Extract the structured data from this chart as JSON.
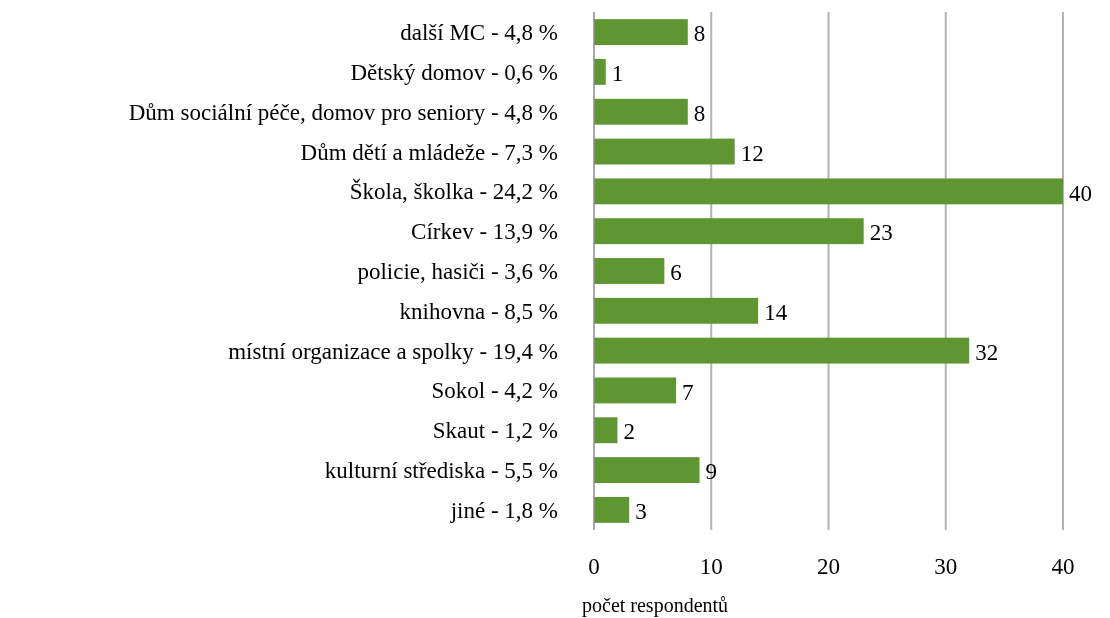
{
  "chart_data": {
    "type": "bar",
    "orientation": "horizontal",
    "xlabel": "počet respondentů",
    "categories": [
      "další MC - 4,8 %",
      "Dětský domov - 0,6 %",
      "Dům sociální péče, domov pro seniory - 4,8 %",
      "Dům dětí a mládeže - 7,3 %",
      "Škola, školka - 24,2 %",
      "Církev - 13,9 %",
      "policie, hasiči - 3,6 %",
      "knihovna - 8,5 %",
      "místní organizace a spolky - 19,4 %",
      "Sokol - 4,2 %",
      "Skaut - 1,2 %",
      "kulturní střediska - 5,5 %",
      "jiné - 1,8 %"
    ],
    "values": [
      8,
      1,
      8,
      12,
      40,
      23,
      6,
      14,
      32,
      7,
      2,
      9,
      3
    ],
    "color": "#5e9732",
    "xlim": [
      0,
      40
    ],
    "xticks": [
      0,
      10,
      20,
      30,
      40
    ],
    "grid": "x",
    "data_labels": true
  }
}
